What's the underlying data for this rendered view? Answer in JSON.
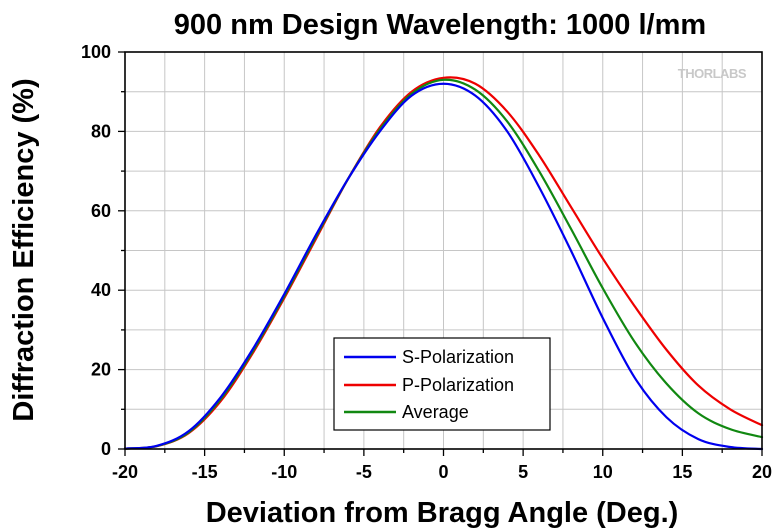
{
  "chart_data": {
    "type": "line",
    "title": "900 nm Design Wavelength: 1000 l/mm",
    "xlabel": "Deviation from Bragg Angle (Deg.)",
    "ylabel": "Diffraction Efficiency (%)",
    "xlim": [
      -20,
      20
    ],
    "ylim": [
      0,
      100
    ],
    "xticks": [
      "-20",
      "-15",
      "-10",
      "-5",
      "0",
      "5",
      "10",
      "15",
      "20"
    ],
    "yticks": [
      "0",
      "20",
      "40",
      "60",
      "80",
      "100"
    ],
    "grid": true,
    "legend_position": "bottom-center",
    "watermark": "THORLABS",
    "x": [
      -20,
      -18,
      -16,
      -14,
      -12,
      -10,
      -8,
      -6,
      -4,
      -2,
      0,
      2,
      4,
      6,
      8,
      10,
      12,
      14,
      16,
      18,
      20
    ],
    "series": [
      {
        "name": "S-Polarization",
        "color": "#0000ee",
        "values": [
          0.1,
          0.8,
          4.5,
          13,
          25,
          39,
          54,
          68,
          80,
          89,
          92,
          89,
          80,
          66,
          50,
          33,
          18,
          8,
          2.5,
          0.5,
          0
        ]
      },
      {
        "name": "P-Polarization",
        "color": "#ee0000",
        "values": [
          0.1,
          0.7,
          4,
          12,
          24,
          38,
          53,
          68,
          81,
          90,
          93.5,
          92,
          85,
          74,
          61,
          48,
          36,
          25,
          16,
          10,
          6
        ]
      },
      {
        "name": "Average",
        "color": "#118811",
        "values": [
          0.1,
          0.75,
          4.2,
          12.5,
          24.5,
          38.5,
          53.5,
          68,
          80.5,
          89.5,
          93,
          90.5,
          82.5,
          70,
          55.5,
          40.5,
          27,
          16.5,
          9,
          5,
          3
        ]
      }
    ]
  }
}
